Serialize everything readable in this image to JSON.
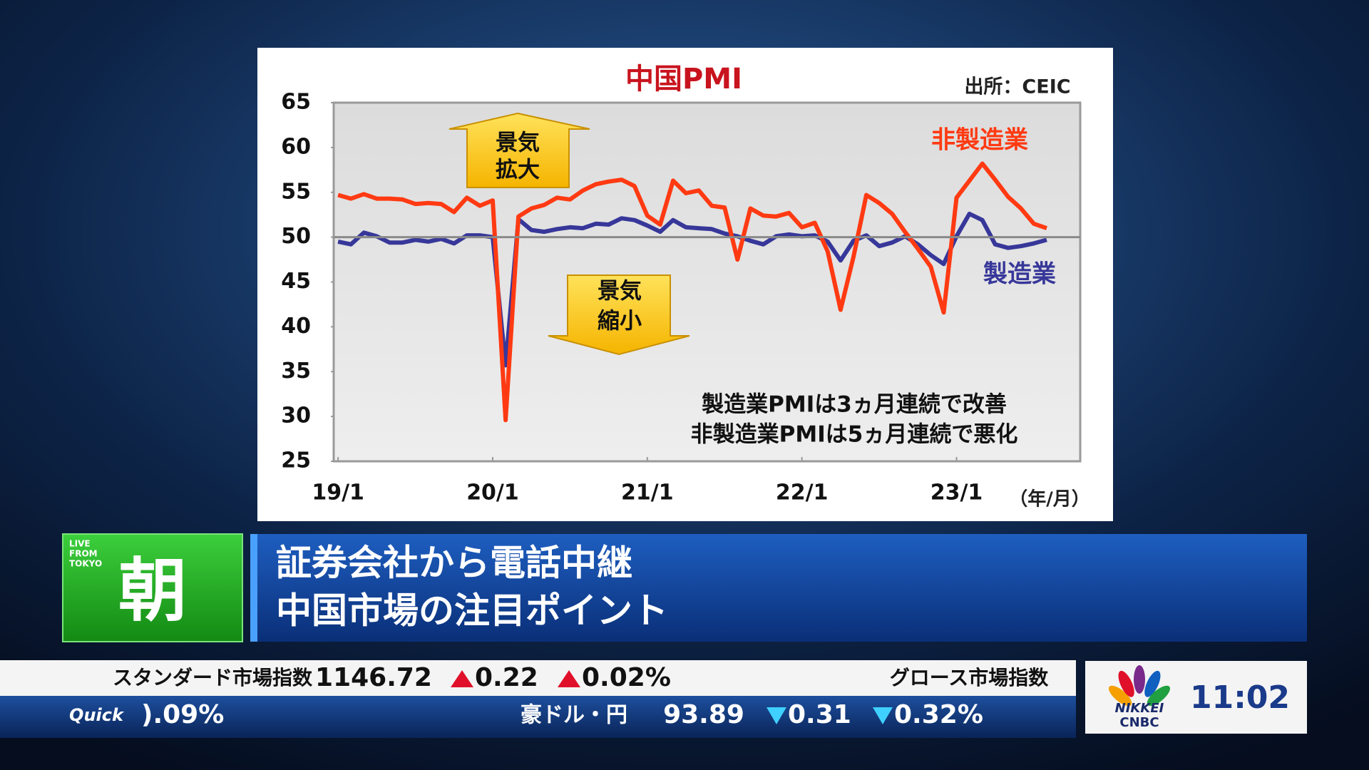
{
  "chart_data": {
    "type": "line",
    "title": "中国PMI",
    "source": "出所：CEIC",
    "xlabel": "（年/月）",
    "categories": [
      "19/1",
      null,
      null,
      null,
      null,
      null,
      null,
      null,
      null,
      null,
      null,
      null,
      "20/1",
      null,
      null,
      null,
      null,
      null,
      null,
      null,
      null,
      null,
      null,
      null,
      "21/1",
      null,
      null,
      null,
      null,
      null,
      null,
      null,
      null,
      null,
      null,
      null,
      "22/1",
      null,
      null,
      null,
      null,
      null,
      null,
      null,
      null,
      null,
      null,
      null,
      "23/1",
      null,
      null,
      null,
      null,
      null,
      null,
      null
    ],
    "series": [
      {
        "name": "非製造業",
        "color": "#ff3a12",
        "values": [
          54.7,
          54.3,
          54.8,
          54.3,
          54.3,
          54.2,
          53.7,
          53.8,
          53.7,
          52.8,
          54.4,
          53.5,
          54.1,
          29.6,
          52.3,
          53.2,
          53.6,
          54.4,
          54.2,
          55.2,
          55.9,
          56.2,
          56.4,
          55.7,
          52.4,
          51.4,
          56.3,
          54.9,
          55.2,
          53.5,
          53.3,
          47.5,
          53.2,
          52.4,
          52.3,
          52.7,
          51.1,
          51.6,
          48.4,
          41.9,
          47.8,
          54.7,
          53.8,
          52.6,
          50.6,
          48.7,
          46.7,
          41.6,
          54.4,
          56.3,
          58.2,
          56.4,
          54.5,
          53.2,
          51.5,
          51.0
        ]
      },
      {
        "name": "製造業",
        "color": "#37379a",
        "values": [
          49.5,
          49.2,
          50.5,
          50.1,
          49.4,
          49.4,
          49.7,
          49.5,
          49.8,
          49.3,
          50.2,
          50.2,
          50.0,
          35.7,
          52.0,
          50.8,
          50.6,
          50.9,
          51.1,
          51.0,
          51.5,
          51.4,
          52.1,
          51.9,
          51.3,
          50.6,
          51.9,
          51.1,
          51.0,
          50.9,
          50.4,
          50.1,
          49.6,
          49.2,
          50.1,
          50.3,
          50.1,
          50.2,
          49.5,
          47.4,
          49.6,
          50.2,
          49.0,
          49.4,
          50.1,
          49.2,
          48.0,
          47.0,
          50.1,
          52.6,
          51.9,
          49.2,
          48.8,
          49.0,
          49.3,
          49.7
        ]
      }
    ],
    "reference_line": 50,
    "ylim": [
      25,
      65
    ],
    "yticks": [
      25,
      30,
      35,
      40,
      45,
      50,
      55,
      60,
      65
    ],
    "annotations": {
      "expand": [
        "景気",
        "拡大"
      ],
      "shrink": [
        "景気",
        "縮小"
      ],
      "note": [
        "製造業PMIは3ヵ月連続で改善",
        "非製造業PMIは5ヵ月連続で悪化"
      ]
    }
  },
  "program": {
    "badge": [
      "LIVE",
      "FROM",
      "TOKYO"
    ],
    "corner": "朝",
    "headline": [
      "証券会社から電話中継",
      "中国市場の注目ポイント"
    ]
  },
  "ticker": {
    "row1": {
      "name": "スタンダード市場指数",
      "value": "1146.72",
      "change": "0.22",
      "change_pct": "0.02%",
      "next_name": "グロース市場指数"
    },
    "row2": {
      "logo": "Quick",
      "prev_pct": ").09%",
      "name": "豪ドル・円",
      "value": "93.89",
      "change": "0.31",
      "change_pct": "0.32%"
    }
  },
  "channel": {
    "name": [
      "NIKKEI",
      "CNBC"
    ],
    "time": "11:02"
  }
}
